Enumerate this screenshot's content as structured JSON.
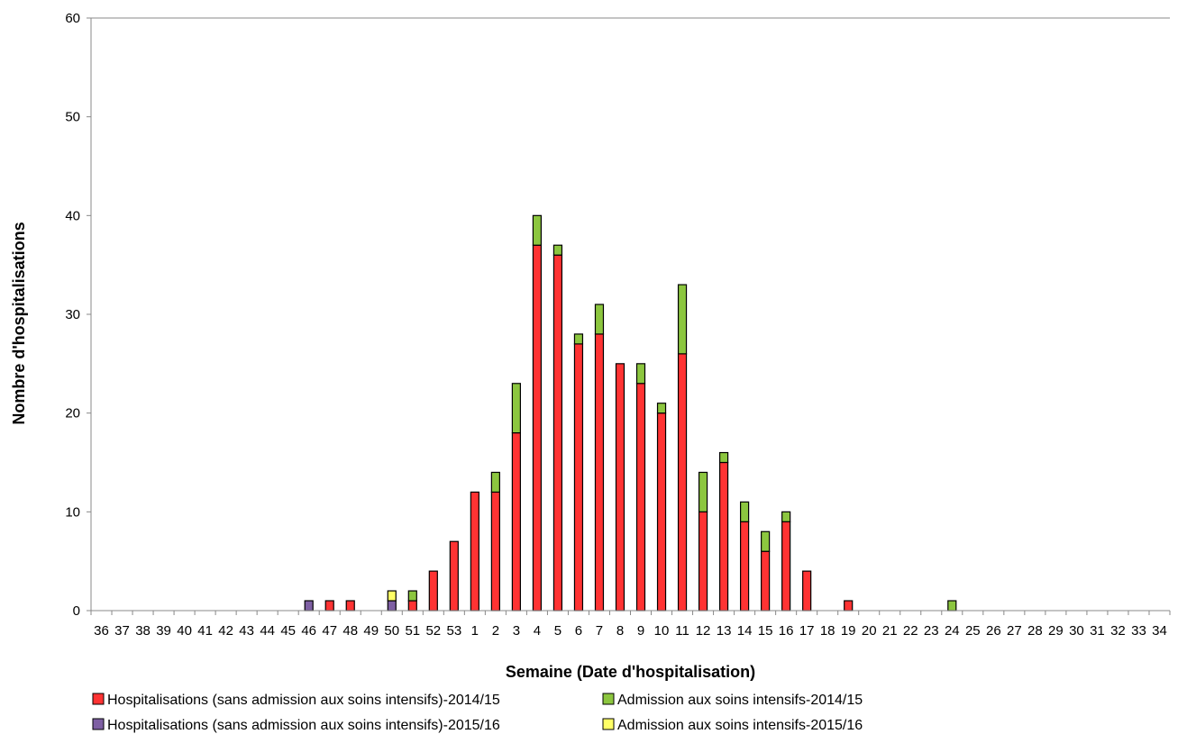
{
  "chart_data": {
    "type": "bar",
    "stacked": true,
    "title": "",
    "xlabel": "Semaine (Date d'hospitalisation)",
    "ylabel": "Nombre d'hospitalisations",
    "ylim": [
      0,
      60
    ],
    "yticks": [
      "0",
      "10",
      "20",
      "30",
      "40",
      "50",
      "60"
    ],
    "grid": false,
    "legend_position": "bottom",
    "categories": [
      "36",
      "37",
      "38",
      "39",
      "40",
      "41",
      "42",
      "43",
      "44",
      "45",
      "46",
      "47",
      "48",
      "49",
      "50",
      "51",
      "52",
      "53",
      "1",
      "2",
      "3",
      "4",
      "5",
      "6",
      "7",
      "8",
      "9",
      "10",
      "11",
      "12",
      "13",
      "14",
      "15",
      "16",
      "17",
      "18",
      "19",
      "20",
      "21",
      "22",
      "23",
      "24",
      "25",
      "26",
      "27",
      "28",
      "29",
      "30",
      "31",
      "32",
      "33",
      "34"
    ],
    "series": [
      {
        "name": "Hospitalisations (sans admission aux soins intensifs)-2014/15",
        "color": "#ff3333",
        "values": [
          0,
          0,
          0,
          0,
          0,
          0,
          0,
          0,
          0,
          0,
          0,
          1,
          1,
          0,
          0,
          1,
          4,
          7,
          12,
          12,
          18,
          37,
          36,
          27,
          28,
          25,
          23,
          20,
          26,
          10,
          15,
          9,
          6,
          9,
          4,
          0,
          1,
          0,
          0,
          0,
          0,
          0,
          0,
          0,
          0,
          0,
          0,
          0,
          0,
          0,
          0,
          0
        ]
      },
      {
        "name": "Admission aux soins intensifs-2014/15",
        "color": "#8cc63f",
        "values": [
          0,
          0,
          0,
          0,
          0,
          0,
          0,
          0,
          0,
          0,
          0,
          0,
          0,
          0,
          0,
          1,
          0,
          0,
          0,
          2,
          5,
          3,
          1,
          1,
          3,
          0,
          2,
          1,
          7,
          4,
          1,
          2,
          2,
          1,
          0,
          0,
          0,
          0,
          0,
          0,
          0,
          1,
          0,
          0,
          0,
          0,
          0,
          0,
          0,
          0,
          0,
          0
        ]
      },
      {
        "name": "Hospitalisations (sans admission aux soins intensifs)-2015/16",
        "color": "#7e5fa3",
        "values": [
          0,
          0,
          0,
          0,
          0,
          0,
          0,
          0,
          0,
          0,
          1,
          0,
          0,
          0,
          1,
          0,
          0,
          0,
          0,
          0,
          0,
          0,
          0,
          0,
          0,
          0,
          0,
          0,
          0,
          0,
          0,
          0,
          0,
          0,
          0,
          0,
          0,
          0,
          0,
          0,
          0,
          0,
          0,
          0,
          0,
          0,
          0,
          0,
          0,
          0,
          0,
          0
        ]
      },
      {
        "name": "Admission aux soins intensifs-2015/16",
        "color": "#ffff66",
        "values": [
          0,
          0,
          0,
          0,
          0,
          0,
          0,
          0,
          0,
          0,
          0,
          0,
          0,
          0,
          1,
          0,
          0,
          0,
          0,
          0,
          0,
          0,
          0,
          0,
          0,
          0,
          0,
          0,
          0,
          0,
          0,
          0,
          0,
          0,
          0,
          0,
          0,
          0,
          0,
          0,
          0,
          0,
          0,
          0,
          0,
          0,
          0,
          0,
          0,
          0,
          0,
          0
        ]
      }
    ]
  }
}
